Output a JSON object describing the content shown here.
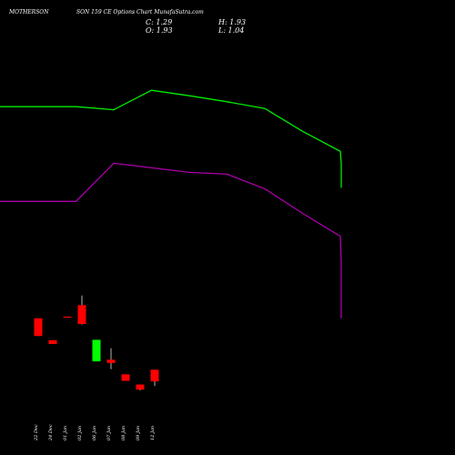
{
  "header": {
    "symbol": "MOTHERSON",
    "subtitle": "SON  159  CE Options  Chart MunafaSutra.com",
    "ohlc": {
      "open_label": "O: 1.93",
      "high_label": "H: 1.93",
      "close_label": "C: 1.29",
      "low_label": "L: 1.04"
    }
  },
  "colors": {
    "background": "#000000",
    "up": "#00ff00",
    "down": "#ff0000",
    "upper_line": "#00ee00",
    "lower_line": "#aa00aa",
    "wick": "#ffffff"
  },
  "chart_data": {
    "type": "candlestick",
    "categories": [
      "22 Dec",
      "24 Dec",
      "01 Jan",
      "02 Jan",
      "06 Jan",
      "07 Jan",
      "08 Jan",
      "09 Jan",
      "12 Jan"
    ],
    "candles": [
      {
        "open": 4.75,
        "high": 4.75,
        "low": 3.78,
        "close": 3.78
      },
      {
        "open": 3.55,
        "high": 3.55,
        "low": 3.34,
        "close": 3.34
      },
      {
        "open": 4.84,
        "high": 4.84,
        "low": 4.84,
        "close": 4.84
      },
      {
        "open": 5.47,
        "high": 6.0,
        "low": 4.4,
        "close": 4.44
      },
      {
        "open": 2.39,
        "high": 3.57,
        "low": 2.39,
        "close": 3.57
      },
      {
        "open": 2.48,
        "high": 3.11,
        "low": 1.96,
        "close": 2.3
      },
      {
        "open": 1.68,
        "high": 1.68,
        "low": 1.32,
        "close": 1.32
      },
      {
        "open": 1.12,
        "high": 1.12,
        "low": 0.8,
        "close": 0.84
      },
      {
        "open": 1.93,
        "high": 1.93,
        "low": 1.04,
        "close": 1.29
      }
    ],
    "overlay_lines": [
      {
        "color": "green",
        "x": [
          -1,
          0,
          1,
          2,
          3,
          4,
          5,
          6,
          7,
          8,
          9,
          10,
          11,
          12
        ],
        "values": [
          16.35,
          16.35,
          16.35,
          16.18,
          17.25,
          16.95,
          16.62,
          16.25,
          15.0,
          13.9,
          13.25,
          12.9,
          12.4,
          11.9
        ]
      },
      {
        "color": "purple",
        "x": [
          -1,
          0,
          1,
          2,
          3,
          4,
          5,
          6,
          7,
          8,
          9,
          10,
          11,
          12
        ],
        "values": [
          11.16,
          11.16,
          11.16,
          13.25,
          13.0,
          12.75,
          12.65,
          11.85,
          10.5,
          9.25,
          7.75,
          5.95,
          5.2,
          4.75
        ]
      }
    ],
    "ylim": [
      0,
      21.2
    ],
    "xlim": [
      -1,
      12
    ]
  }
}
